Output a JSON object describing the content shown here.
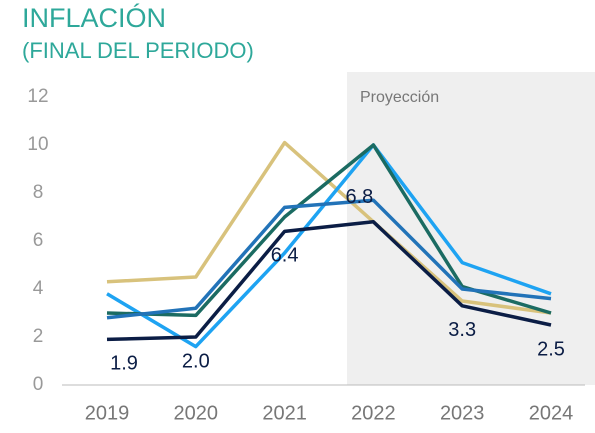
{
  "chart_data": {
    "type": "line",
    "title": "INFLACIÓN",
    "subtitle": "(FINAL DEL PERIODO)",
    "annotation": "Proyección",
    "categories": [
      "2019",
      "2020",
      "2021",
      "2022",
      "2023",
      "2024"
    ],
    "series": [
      {
        "color": "#d8c27c",
        "values": [
          4.3,
          4.5,
          10.1,
          6.8,
          3.5,
          3.0
        ]
      },
      {
        "color": "#1ea3f2",
        "values": [
          3.8,
          1.6,
          5.5,
          10.0,
          5.1,
          3.8
        ]
      },
      {
        "color": "#1b6b62",
        "values": [
          3.0,
          2.9,
          7.0,
          10.0,
          4.1,
          3.0
        ]
      },
      {
        "color": "#2273b8",
        "values": [
          2.8,
          3.2,
          7.4,
          7.7,
          4.0,
          3.6
        ]
      },
      {
        "color": "#0b1d45",
        "values": [
          1.9,
          2.0,
          6.4,
          6.8,
          3.3,
          2.5
        ],
        "value_labels": [
          "1.9",
          "2.0",
          "6.4",
          "6.8",
          "3.3",
          "2.5"
        ]
      }
    ],
    "ylim": [
      0,
      12
    ],
    "yticks": [
      0,
      2,
      4,
      6,
      8,
      10,
      12
    ]
  }
}
